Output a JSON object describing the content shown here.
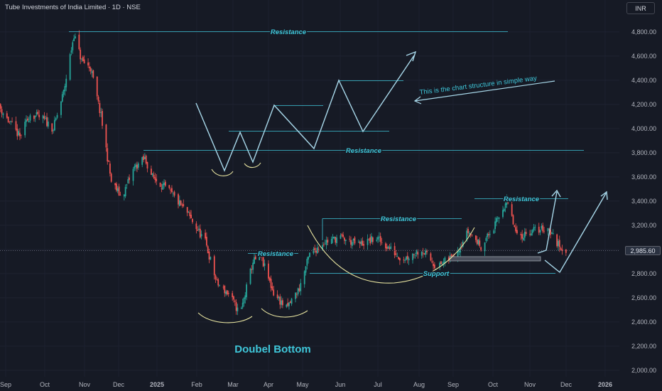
{
  "header": {
    "symbol_title": "Tube Investments of India Limited · 1D · NSE",
    "currency_button": "INR"
  },
  "price_scale": {
    "current_price_label": "2,985.60"
  },
  "colors": {
    "background": "#161a25",
    "up_candle": "#26a69a",
    "down_candle": "#ef5350",
    "annotation": "#3fc7da",
    "arc": "#e8e4a0",
    "text": "#b2b5be"
  },
  "chart_data": {
    "type": "candlestick",
    "x_tick_labels": [
      "Sep",
      "Oct",
      "Nov",
      "Dec",
      "2025",
      "Feb",
      "Mar",
      "Apr",
      "May",
      "Jun",
      "Jul",
      "Aug",
      "Sep",
      "Oct",
      "Nov",
      "Dec",
      "2026"
    ],
    "y_tick_labels": [
      "4,800.00",
      "4,600.00",
      "4,400.00",
      "4,200.00",
      "4,000.00",
      "3,800.00",
      "3,600.00",
      "3,400.00",
      "3,200.00",
      "3,000.00",
      "2,800.00",
      "2,600.00",
      "2,400.00",
      "2,200.00",
      "2,000.00"
    ],
    "ylim": [
      1960,
      5020
    ],
    "current_price": 2985.6,
    "price_path_closes": [
      [
        "2024-08-26",
        4200
      ],
      [
        "2024-09-04",
        4050
      ],
      [
        "2024-09-12",
        3930
      ],
      [
        "2024-09-20",
        4120
      ],
      [
        "2024-09-30",
        4080
      ],
      [
        "2024-10-08",
        4000
      ],
      [
        "2024-10-16",
        4300
      ],
      [
        "2024-10-24",
        4780
      ],
      [
        "2024-10-30",
        4560
      ],
      [
        "2024-11-06",
        4500
      ],
      [
        "2024-11-14",
        4100
      ],
      [
        "2024-11-22",
        3560
      ],
      [
        "2024-11-30",
        3430
      ],
      [
        "2024-12-10",
        3680
      ],
      [
        "2024-12-18",
        3750
      ],
      [
        "2024-12-24",
        3600
      ],
      [
        "2025-01-06",
        3480
      ],
      [
        "2025-01-20",
        3300
      ],
      [
        "2025-02-03",
        3060
      ],
      [
        "2025-02-12",
        2720
      ],
      [
        "2025-02-22",
        2620
      ],
      [
        "2025-03-02",
        2460
      ],
      [
        "2025-03-12",
        2900
      ],
      [
        "2025-03-18",
        2940
      ],
      [
        "2025-03-28",
        2640
      ],
      [
        "2025-04-07",
        2510
      ],
      [
        "2025-04-17",
        2680
      ],
      [
        "2025-04-25",
        2960
      ],
      [
        "2025-05-06",
        3060
      ],
      [
        "2025-05-18",
        3100
      ],
      [
        "2025-06-02",
        3040
      ],
      [
        "2025-06-16",
        3090
      ],
      [
        "2025-06-26",
        3010
      ],
      [
        "2025-07-06",
        2920
      ],
      [
        "2025-07-21",
        3000
      ],
      [
        "2025-08-02",
        2850
      ],
      [
        "2025-08-16",
        2960
      ],
      [
        "2025-08-26",
        3150
      ],
      [
        "2025-09-05",
        3030
      ],
      [
        "2025-09-15",
        3180
      ],
      [
        "2025-09-25",
        3410
      ],
      [
        "2025-10-03",
        3100
      ],
      [
        "2025-10-13",
        3150
      ],
      [
        "2025-10-27",
        3180
      ],
      [
        "2025-11-04",
        3040
      ],
      [
        "2025-11-10",
        2990
      ]
    ],
    "annotations": [
      {
        "kind": "text",
        "text": "Resistance"
      },
      {
        "kind": "text",
        "text": "Resistance"
      },
      {
        "kind": "text",
        "text": "Resistance"
      },
      {
        "kind": "text",
        "text": "Resistance"
      },
      {
        "kind": "text",
        "text": "Resistance"
      },
      {
        "kind": "text",
        "text": "Support"
      },
      {
        "kind": "text",
        "text": "This is the chart structure in simple way"
      },
      {
        "kind": "text",
        "text": "Doubel Bottom"
      }
    ]
  }
}
